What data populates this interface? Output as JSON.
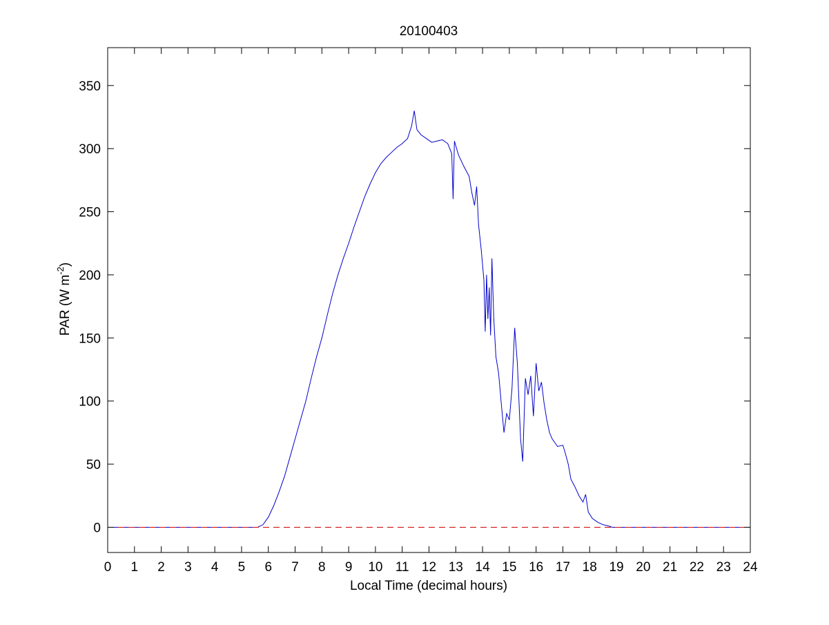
{
  "chart_data": {
    "type": "line",
    "title": "20100403",
    "xlabel": "Local Time (decimal hours)",
    "ylabel_main": "PAR (W m",
    "ylabel_exp": "-2",
    "ylabel_close": ")",
    "xlim": [
      0,
      24
    ],
    "ylim": [
      -20,
      380
    ],
    "xticks": [
      0,
      1,
      2,
      3,
      4,
      5,
      6,
      7,
      8,
      9,
      10,
      11,
      12,
      13,
      14,
      15,
      16,
      17,
      18,
      19,
      20,
      21,
      22,
      23,
      24
    ],
    "yticks": [
      0,
      50,
      100,
      150,
      200,
      250,
      300,
      350
    ],
    "grid": false,
    "series": [
      {
        "color": "#0000cc",
        "style": "solid",
        "x": [
          0,
          5.6,
          5.8,
          6.0,
          6.2,
          6.4,
          6.6,
          6.8,
          7.0,
          7.2,
          7.4,
          7.6,
          7.8,
          8.0,
          8.2,
          8.4,
          8.6,
          8.8,
          9.0,
          9.2,
          9.4,
          9.6,
          9.8,
          10.0,
          10.2,
          10.4,
          10.6,
          10.8,
          11.0,
          11.2,
          11.35,
          11.45,
          11.55,
          11.7,
          11.9,
          12.1,
          12.3,
          12.5,
          12.7,
          12.85,
          12.9,
          12.95,
          13.1,
          13.3,
          13.5,
          13.6,
          13.7,
          13.78,
          13.85,
          13.95,
          14.05,
          14.1,
          14.15,
          14.2,
          14.25,
          14.3,
          14.35,
          14.42,
          14.5,
          14.6,
          14.7,
          14.8,
          14.9,
          15.0,
          15.1,
          15.2,
          15.3,
          15.42,
          15.5,
          15.6,
          15.7,
          15.8,
          15.9,
          16.0,
          16.1,
          16.2,
          16.3,
          16.4,
          16.5,
          16.6,
          16.8,
          17.0,
          17.1,
          17.2,
          17.3,
          17.45,
          17.6,
          17.75,
          17.85,
          17.95,
          18.1,
          18.3,
          18.5,
          18.7,
          18.85,
          19.0,
          24
        ],
        "y": [
          0,
          0,
          2,
          8,
          17,
          28,
          40,
          55,
          70,
          85,
          100,
          118,
          135,
          150,
          168,
          185,
          200,
          213,
          225,
          238,
          250,
          262,
          272,
          281,
          288,
          293,
          297,
          301,
          304,
          308,
          318,
          330,
          315,
          311,
          308,
          305,
          306,
          307,
          304,
          296,
          260,
          306,
          295,
          286,
          278,
          265,
          255,
          270,
          240,
          220,
          196,
          155,
          200,
          165,
          190,
          152,
          213,
          165,
          135,
          122,
          98,
          75,
          90,
          85,
          110,
          158,
          130,
          70,
          52,
          118,
          105,
          120,
          88,
          130,
          108,
          115,
          98,
          85,
          75,
          70,
          64,
          65,
          58,
          50,
          38,
          32,
          25,
          20,
          26,
          12,
          7,
          4,
          2,
          1,
          0,
          0,
          0
        ]
      },
      {
        "color": "#cc0000",
        "style": "dashed",
        "x": [
          0,
          24
        ],
        "y": [
          0,
          0
        ]
      }
    ]
  }
}
